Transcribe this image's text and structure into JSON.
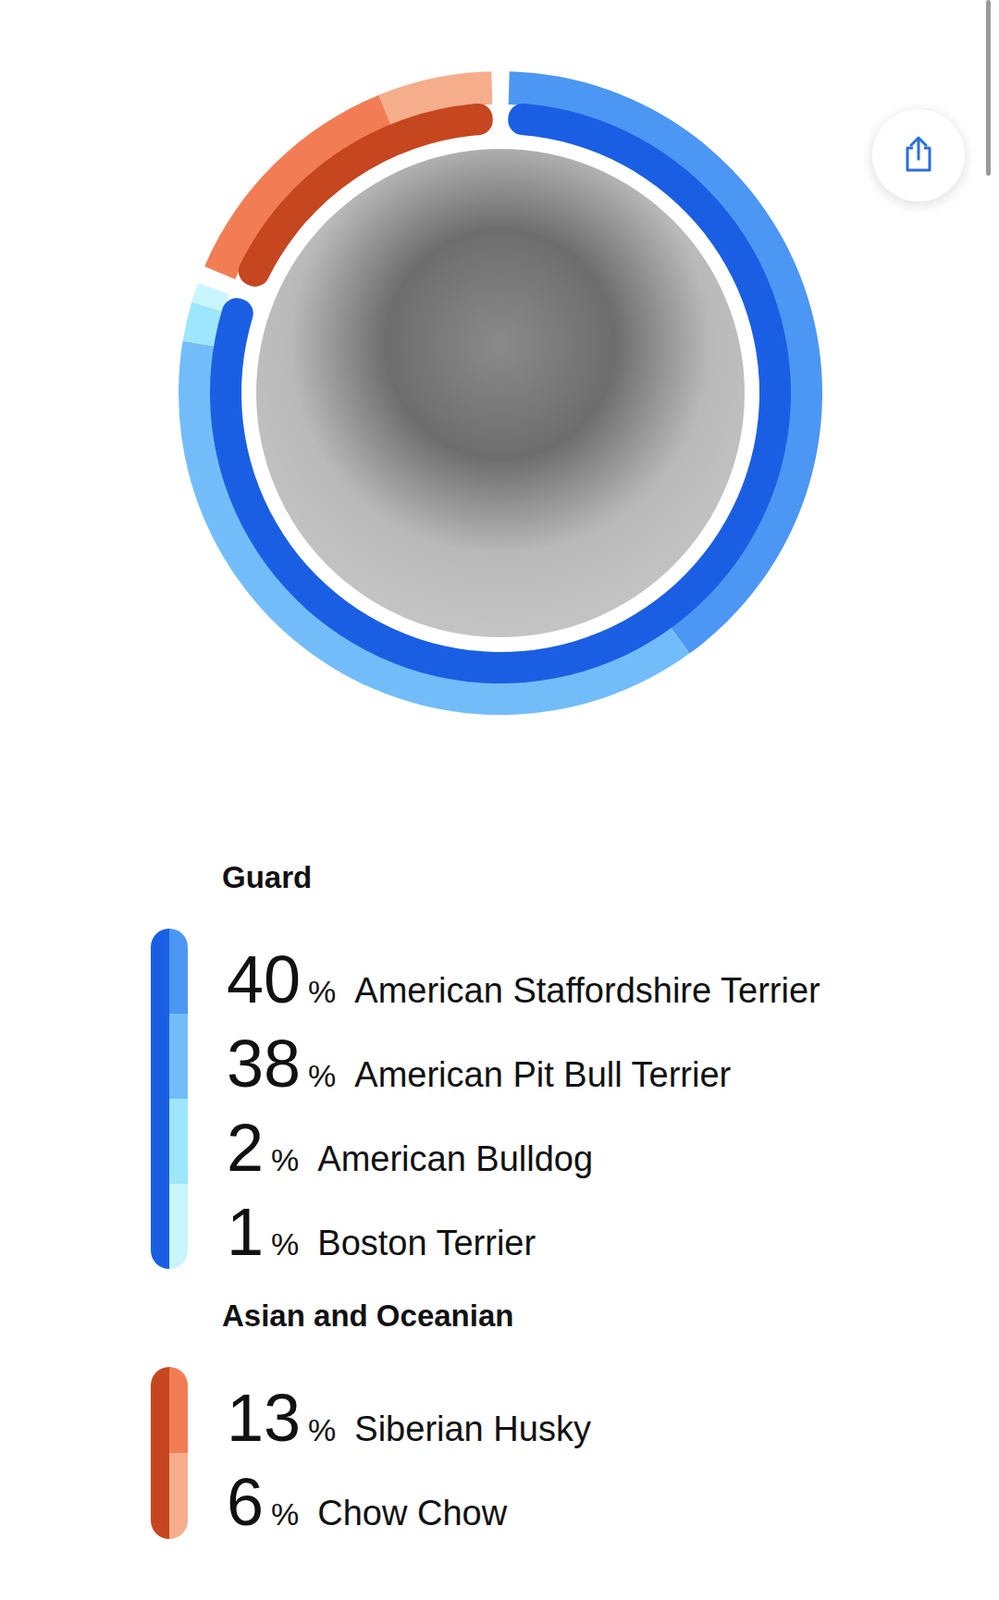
{
  "chart_data": {
    "type": "donut",
    "unit": "%",
    "legend": "bottom",
    "data_labels": false,
    "groups": [
      {
        "name": "Guard",
        "color": "#1a5fe3",
        "categories": [
          "American Staffordshire Terrier",
          "American Pit Bull Terrier",
          "American Bulldog",
          "Boston Terrier"
        ],
        "values": [
          40,
          38,
          2,
          1
        ],
        "colors": [
          "#4c97f3",
          "#72bdf9",
          "#9ee6fb",
          "#c9f5fd"
        ]
      },
      {
        "name": "Asian and Oceanian",
        "color": "#c5461f",
        "categories": [
          "Siberian Husky",
          "Chow Chow"
        ],
        "values": [
          13,
          6
        ],
        "colors": [
          "#f27d55",
          "#f6ad8c"
        ]
      }
    ]
  }
}
